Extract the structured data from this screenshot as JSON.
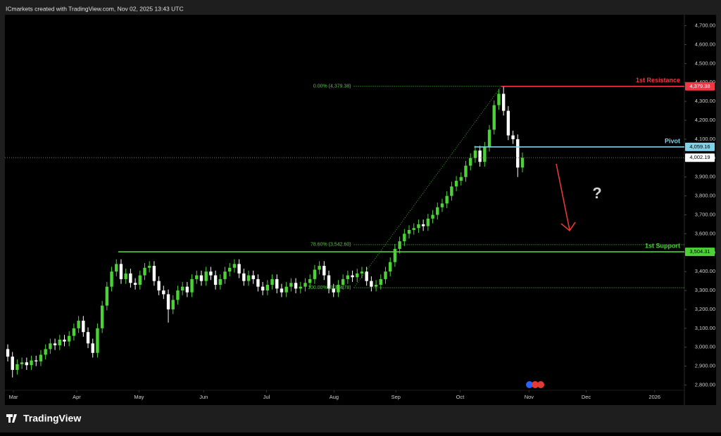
{
  "header": {
    "text": "ICmarkets created with TradingView.com, Nov 02, 2025 13:43 UTC"
  },
  "footer": {
    "logo": "TradingView"
  },
  "chart_data": {
    "type": "candlestick",
    "up_color": "#4cd137",
    "down_color": "#ffffff",
    "open": [
      2990,
      2950,
      2880,
      2910,
      2920,
      2905,
      2930,
      2925,
      2960,
      2990,
      3020,
      3010,
      3040,
      3030,
      3060,
      3100,
      3140,
      3080,
      3020,
      2970,
      3100,
      3220,
      3320,
      3400,
      3440,
      3360,
      3390,
      3340,
      3330,
      3380,
      3420,
      3430,
      3350,
      3300,
      3280,
      3200,
      3250,
      3300,
      3320,
      3290,
      3360,
      3380,
      3350,
      3400,
      3380,
      3330,
      3360,
      3400,
      3420,
      3440,
      3390,
      3350,
      3380,
      3360,
      3320,
      3300,
      3330,
      3360,
      3310,
      3290,
      3320,
      3340,
      3310,
      3320,
      3340,
      3360,
      3410,
      3430,
      3380,
      3310,
      3290,
      3330,
      3360,
      3380,
      3370,
      3390,
      3400,
      3350,
      3320,
      3330,
      3360,
      3400,
      3450,
      3520,
      3560,
      3600,
      3620,
      3630,
      3650,
      3640,
      3680,
      3700,
      3740,
      3760,
      3800,
      3850,
      3880,
      3900,
      3960,
      4000,
      4040,
      3980,
      4060,
      4150,
      4280,
      4340,
      4250,
      4120,
      4100,
      3950
    ],
    "high": [
      3015,
      2975,
      2935,
      2945,
      2945,
      2955,
      2955,
      2985,
      3015,
      3045,
      3045,
      3065,
      3065,
      3085,
      3125,
      3165,
      3165,
      3105,
      3045,
      3125,
      3245,
      3345,
      3425,
      3465,
      3465,
      3415,
      3415,
      3365,
      3405,
      3445,
      3455,
      3455,
      3375,
      3325,
      3305,
      3275,
      3325,
      3345,
      3345,
      3385,
      3405,
      3405,
      3425,
      3425,
      3405,
      3385,
      3425,
      3445,
      3465,
      3465,
      3415,
      3405,
      3405,
      3385,
      3345,
      3355,
      3385,
      3385,
      3335,
      3345,
      3365,
      3365,
      3345,
      3365,
      3385,
      3435,
      3455,
      3455,
      3405,
      3335,
      3355,
      3385,
      3405,
      3405,
      3415,
      3425,
      3425,
      3375,
      3355,
      3385,
      3425,
      3475,
      3545,
      3585,
      3625,
      3645,
      3655,
      3675,
      3675,
      3705,
      3725,
      3765,
      3785,
      3825,
      3875,
      3905,
      3925,
      3985,
      4025,
      4065,
      4065,
      4085,
      4175,
      4305,
      4365,
      4379.38,
      4275,
      4145,
      4125,
      4030
    ],
    "low": [
      2925,
      2840,
      2855,
      2885,
      2880,
      2880,
      2900,
      2900,
      2935,
      2965,
      2985,
      2985,
      3005,
      3005,
      3035,
      3075,
      3055,
      2995,
      2945,
      2945,
      3075,
      3195,
      3295,
      3375,
      3335,
      3335,
      3315,
      3305,
      3305,
      3355,
      3395,
      3325,
      3275,
      3255,
      3130,
      3175,
      3225,
      3275,
      3265,
      3265,
      3335,
      3325,
      3325,
      3355,
      3305,
      3305,
      3335,
      3375,
      3395,
      3365,
      3325,
      3325,
      3335,
      3295,
      3275,
      3275,
      3305,
      3285,
      3265,
      3265,
      3295,
      3285,
      3285,
      3295,
      3315,
      3335,
      3385,
      3355,
      3285,
      3265,
      3265,
      3305,
      3335,
      3345,
      3345,
      3365,
      3325,
      3295,
      3295,
      3305,
      3335,
      3375,
      3425,
      3495,
      3535,
      3575,
      3595,
      3605,
      3615,
      3615,
      3655,
      3675,
      3715,
      3735,
      3775,
      3825,
      3855,
      3875,
      3935,
      3975,
      3955,
      3955,
      4035,
      4125,
      4255,
      4225,
      4095,
      4075,
      3900,
      3925
    ],
    "close": [
      2950,
      2880,
      2910,
      2920,
      2905,
      2930,
      2925,
      2960,
      2990,
      3020,
      3010,
      3040,
      3030,
      3060,
      3100,
      3140,
      3080,
      3020,
      2970,
      3100,
      3220,
      3320,
      3400,
      3440,
      3360,
      3390,
      3340,
      3330,
      3380,
      3420,
      3430,
      3350,
      3300,
      3280,
      3200,
      3250,
      3300,
      3320,
      3290,
      3360,
      3380,
      3350,
      3400,
      3380,
      3330,
      3360,
      3400,
      3420,
      3440,
      3390,
      3350,
      3380,
      3360,
      3320,
      3300,
      3330,
      3360,
      3310,
      3290,
      3320,
      3340,
      3310,
      3320,
      3340,
      3360,
      3410,
      3430,
      3380,
      3310,
      3290,
      3330,
      3360,
      3380,
      3370,
      3390,
      3400,
      3350,
      3320,
      3330,
      3360,
      3400,
      3450,
      3520,
      3560,
      3600,
      3620,
      3630,
      3650,
      3640,
      3680,
      3700,
      3740,
      3760,
      3800,
      3850,
      3880,
      3900,
      3960,
      4000,
      4040,
      3980,
      4060,
      4150,
      4280,
      4340,
      4250,
      4120,
      4100,
      3950,
      4002
    ],
    "xlim": [
      -0.6,
      143.3
    ],
    "xticks": [
      {
        "value": 1.2,
        "label": "Mar"
      },
      {
        "value": 14.6,
        "label": "Apr"
      },
      {
        "value": 27.8,
        "label": "May"
      },
      {
        "value": 41.5,
        "label": "Jun"
      },
      {
        "value": 54.8,
        "label": "Jul"
      },
      {
        "value": 69.1,
        "label": "Aug"
      },
      {
        "value": 82.2,
        "label": "Sep"
      },
      {
        "value": 95.8,
        "label": "Oct"
      },
      {
        "value": 110.4,
        "label": "Nov"
      },
      {
        "value": 122.5,
        "label": "Dec"
      },
      {
        "value": 137,
        "label": "2026"
      }
    ],
    "ylim": [
      2694,
      4758
    ],
    "yticks": [
      {
        "value": 2800,
        "label": "2,800.00"
      },
      {
        "value": 2900,
        "label": "2,900.00"
      },
      {
        "value": 3000,
        "label": "3,000.00"
      },
      {
        "value": 3100,
        "label": "3,100.00"
      },
      {
        "value": 3200,
        "label": "3,200.00"
      },
      {
        "value": 3300,
        "label": "3,300.00"
      },
      {
        "value": 3400,
        "label": "3,400.00"
      },
      {
        "value": 3500,
        "label": "3,500.00"
      },
      {
        "value": 3600,
        "label": "3,600.00"
      },
      {
        "value": 3700,
        "label": "3,700.00"
      },
      {
        "value": 3800,
        "label": "3,800.00"
      },
      {
        "value": 3900,
        "label": "3,900.00"
      },
      {
        "value": 4000,
        "label": "4,000.00"
      },
      {
        "value": 4100,
        "label": "4,100.00"
      },
      {
        "value": 4200,
        "label": "4,200.00"
      },
      {
        "value": 4300,
        "label": "4,300.00"
      },
      {
        "value": 4400,
        "label": "4,400.00"
      },
      {
        "value": 4500,
        "label": "4,500.00"
      },
      {
        "value": 4600,
        "label": "4,600.00"
      },
      {
        "value": 4700,
        "label": "4,700.00"
      }
    ],
    "levels": [
      {
        "name": "1st Resistance",
        "value": 4379.38,
        "value_label": "4,379.38",
        "color": "#f23645"
      },
      {
        "name": "Pivot",
        "value": 4059.16,
        "value_label": "4,059.16",
        "color": "#7fd3e8"
      },
      {
        "name": "1st Support",
        "value": 3504.31,
        "value_label": "3,504.31",
        "color": "#4cd137"
      }
    ],
    "last_price": {
      "value": 4002.19,
      "label": "4,002.19"
    },
    "fib": [
      {
        "label": "0.00% (4,379.38)",
        "value": 4379.38
      },
      {
        "label": "78.60% (3,542.60)",
        "value": 3542.6
      },
      {
        "label": "100.00% (3,314.78)",
        "value": 3314.78
      }
    ],
    "annotation": "?"
  }
}
